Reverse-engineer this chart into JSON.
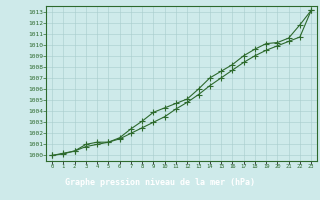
{
  "title": "Graphe pression niveau de la mer (hPa)",
  "x": [
    0,
    1,
    2,
    3,
    4,
    5,
    6,
    7,
    8,
    9,
    10,
    11,
    12,
    13,
    14,
    15,
    16,
    17,
    18,
    19,
    20,
    21,
    22,
    23
  ],
  "series1": [
    1000.0,
    1000.2,
    1000.4,
    1000.8,
    1001.0,
    1001.2,
    1001.5,
    1002.0,
    1002.5,
    1003.0,
    1003.5,
    1004.2,
    1004.8,
    1005.5,
    1006.3,
    1007.0,
    1007.7,
    1008.4,
    1009.0,
    1009.5,
    1009.9,
    1010.3,
    1010.7,
    1013.1
  ],
  "series2": [
    1000.0,
    1000.15,
    1000.4,
    1001.0,
    1001.2,
    1001.2,
    1001.6,
    1002.4,
    1003.1,
    1003.9,
    1004.3,
    1004.7,
    1005.1,
    1006.0,
    1007.0,
    1007.6,
    1008.2,
    1009.0,
    1009.6,
    1010.1,
    1010.2,
    1010.6,
    1011.8,
    1013.1
  ],
  "ylim": [
    999.5,
    1013.5
  ],
  "yticks": [
    1000,
    1001,
    1002,
    1003,
    1004,
    1005,
    1006,
    1007,
    1008,
    1009,
    1010,
    1011,
    1012,
    1013
  ],
  "line_color": "#2d6a2d",
  "bg_color": "#ceeaea",
  "grid_color": "#a8cccc",
  "title_color": "white",
  "title_bg": "#2d6a2d",
  "marker": "+",
  "markersize": 4.0,
  "linewidth": 0.8
}
